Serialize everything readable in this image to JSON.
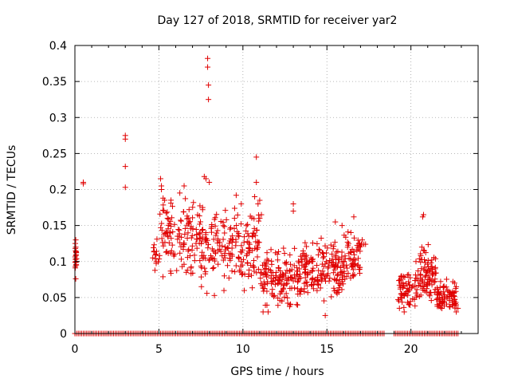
{
  "chart_data": {
    "type": "scatter",
    "title": "Day 127 of 2018, SRMTID for receiver yar2",
    "xlabel": "GPS time / hours",
    "ylabel": "SRMTID / TECUs",
    "xlim": [
      0,
      24
    ],
    "ylim": [
      0,
      0.4
    ],
    "xticks": [
      0,
      5,
      10,
      15,
      20
    ],
    "xtick_labels": [
      "0",
      "5",
      "10",
      "15",
      "20"
    ],
    "yticks": [
      0,
      0.05,
      0.1,
      0.15,
      0.2,
      0.25,
      0.3,
      0.35,
      0.4
    ],
    "ytick_labels": [
      "0",
      "0.05",
      "0.1",
      "0.15",
      "0.2",
      "0.25",
      "0.3",
      "0.35",
      "0.4"
    ],
    "grid": true,
    "marker": "plus",
    "series_color": "#e00000",
    "zero_segments": [
      [
        0,
        4.9
      ],
      [
        5.0,
        18.4
      ],
      [
        19.0,
        22.9
      ]
    ],
    "clusters": [
      {
        "x": [
          0,
          0.1
        ],
        "y": [
          0.075,
          0.135
        ],
        "n": 18
      },
      {
        "x": [
          4.6,
          5.0
        ],
        "y": [
          0.07,
          0.14
        ],
        "n": 14
      },
      {
        "x": [
          5.0,
          7.5
        ],
        "y": [
          0.06,
          0.21
        ],
        "n": 130
      },
      {
        "x": [
          7.5,
          9.0
        ],
        "y": [
          0.04,
          0.2
        ],
        "n": 80
      },
      {
        "x": [
          9.0,
          11.0
        ],
        "y": [
          0.05,
          0.19
        ],
        "n": 110
      },
      {
        "x": [
          11.0,
          13.5
        ],
        "y": [
          0.025,
          0.13
        ],
        "n": 150
      },
      {
        "x": [
          13.5,
          16.0
        ],
        "y": [
          0.03,
          0.14
        ],
        "n": 160
      },
      {
        "x": [
          16.0,
          17.0
        ],
        "y": [
          0.045,
          0.16
        ],
        "n": 60
      },
      {
        "x": [
          19.2,
          20.5
        ],
        "y": [
          0.02,
          0.1
        ],
        "n": 70
      },
      {
        "x": [
          20.5,
          21.5
        ],
        "y": [
          0.03,
          0.13
        ],
        "n": 80
      },
      {
        "x": [
          21.5,
          22.7
        ],
        "y": [
          0.02,
          0.08
        ],
        "n": 80
      }
    ],
    "points": [
      [
        0.05,
        0.13
      ],
      [
        0.05,
        0.12
      ],
      [
        0.05,
        0.1
      ],
      [
        0.05,
        0.076
      ],
      [
        0.5,
        0.21
      ],
      [
        0.5,
        0.208
      ],
      [
        3.0,
        0.275
      ],
      [
        3.0,
        0.27
      ],
      [
        3.0,
        0.232
      ],
      [
        3.0,
        0.203
      ],
      [
        7.9,
        0.382
      ],
      [
        7.9,
        0.37
      ],
      [
        7.95,
        0.345
      ],
      [
        7.95,
        0.325
      ],
      [
        7.7,
        0.218
      ],
      [
        7.8,
        0.215
      ],
      [
        8.0,
        0.21
      ],
      [
        5.1,
        0.215
      ],
      [
        5.15,
        0.205
      ],
      [
        5.15,
        0.2
      ],
      [
        5.25,
        0.188
      ],
      [
        6.5,
        0.205
      ],
      [
        7.6,
        0.175
      ],
      [
        7.6,
        0.172
      ],
      [
        9.6,
        0.192
      ],
      [
        9.5,
        0.16
      ],
      [
        9.9,
        0.18
      ],
      [
        10.8,
        0.245
      ],
      [
        10.8,
        0.21
      ],
      [
        10.7,
        0.19
      ],
      [
        11.0,
        0.185
      ],
      [
        10.9,
        0.18
      ],
      [
        11.0,
        0.16
      ],
      [
        11.1,
        0.165
      ],
      [
        13.0,
        0.18
      ],
      [
        13.0,
        0.17
      ],
      [
        14.9,
        0.025
      ],
      [
        11.2,
        0.03
      ],
      [
        11.5,
        0.03
      ],
      [
        16.9,
        0.125
      ],
      [
        17.0,
        0.122
      ],
      [
        16.95,
        0.125
      ],
      [
        17.05,
        0.124
      ],
      [
        16.6,
        0.162
      ],
      [
        15.5,
        0.155
      ],
      [
        15.9,
        0.15
      ],
      [
        17.1,
        0.13
      ],
      [
        17.2,
        0.124
      ],
      [
        17.3,
        0.124
      ],
      [
        20.75,
        0.165
      ],
      [
        20.7,
        0.162
      ],
      [
        20.65,
        0.12
      ],
      [
        20.8,
        0.115
      ],
      [
        20.3,
        0.1
      ],
      [
        19.6,
        0.03
      ],
      [
        22.5,
        0.072
      ],
      [
        22.6,
        0.07
      ],
      [
        22.7,
        0.065
      ],
      [
        22.8,
        0.035
      ],
      [
        22.7,
        0.03
      ]
    ]
  }
}
